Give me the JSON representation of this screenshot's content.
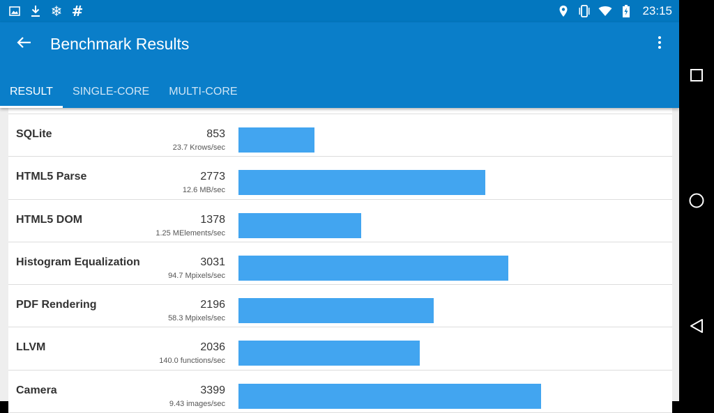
{
  "status_bar": {
    "left_icons": [
      "image-icon",
      "download-icon",
      "snowflake-icon",
      "hash-icon"
    ],
    "right_icons": [
      "location-icon",
      "vibrate-icon",
      "wifi-icon",
      "battery-charging-icon"
    ],
    "time": "23:15"
  },
  "app_bar": {
    "title": "Benchmark Results",
    "tabs": [
      {
        "label": "RESULT",
        "active": true
      },
      {
        "label": "SINGLE-CORE",
        "active": false
      },
      {
        "label": "MULTI-CORE",
        "active": false
      }
    ]
  },
  "results": [
    {
      "name": "SQLite",
      "score": "853",
      "unit": "23.7 Krows/sec"
    },
    {
      "name": "HTML5 Parse",
      "score": "2773",
      "unit": "12.6 MB/sec"
    },
    {
      "name": "HTML5 DOM",
      "score": "1378",
      "unit": "1.25 MElements/sec"
    },
    {
      "name": "Histogram Equalization",
      "score": "3031",
      "unit": "94.7 Mpixels/sec"
    },
    {
      "name": "PDF Rendering",
      "score": "2196",
      "unit": "58.3 Mpixels/sec"
    },
    {
      "name": "LLVM",
      "score": "2036",
      "unit": "140.0 functions/sec"
    },
    {
      "name": "Camera",
      "score": "3399",
      "unit": "9.43 images/sec"
    }
  ],
  "colors": {
    "status_bar": "#0377bf",
    "app_bar": "#0a7ec9",
    "bar": "#42a5f0",
    "background": "#eeeeee"
  },
  "nav_bar": {
    "buttons": [
      "recents-icon",
      "home-icon",
      "back-triangle-icon"
    ]
  }
}
